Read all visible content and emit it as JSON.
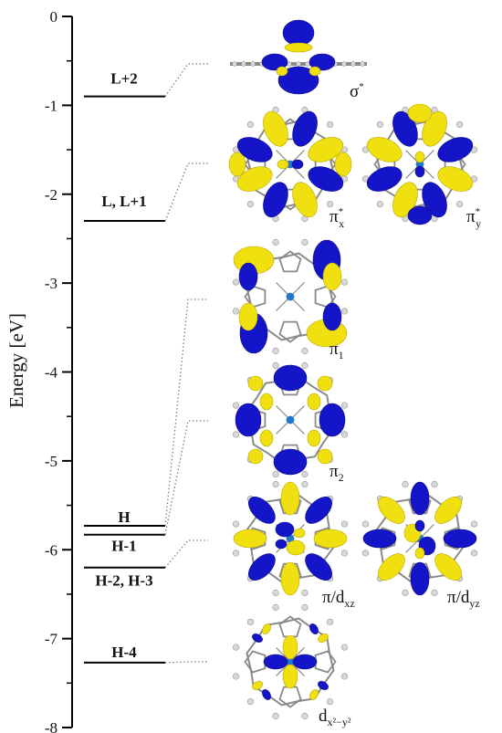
{
  "axis": {
    "title": "Energy [eV]",
    "ticks": [
      "0",
      "-1",
      "-2",
      "-3",
      "-4",
      "-5",
      "-6",
      "-7",
      "-8"
    ]
  },
  "levels": [
    {
      "id": "L+2",
      "label": "L+2",
      "energy": -0.9
    },
    {
      "id": "L,L+1",
      "label": "L, L+1",
      "energy": -2.3
    },
    {
      "id": "H",
      "label": "H",
      "energy": -5.73
    },
    {
      "id": "H-1",
      "label": "H-1",
      "energy": -5.83
    },
    {
      "id": "H-2,H-3",
      "label": "H-2, H-3",
      "energy": -6.2
    },
    {
      "id": "H-4",
      "label": "H-4",
      "energy": -7.27
    }
  ],
  "orbitals": [
    {
      "id": "sigma",
      "main": "σ",
      "sup": "*",
      "sub": ""
    },
    {
      "id": "pix",
      "main": "π",
      "sup": "*",
      "sub": "x"
    },
    {
      "id": "piy",
      "main": "π",
      "sup": "*",
      "sub": "y"
    },
    {
      "id": "pi1",
      "main": "π",
      "sup": "",
      "sub": "1"
    },
    {
      "id": "pi2",
      "main": "π",
      "sup": "",
      "sub": "2"
    },
    {
      "id": "pidxz",
      "main": "π/d",
      "sup": "",
      "sub": "xz"
    },
    {
      "id": "pidyz",
      "main": "π/d",
      "sup": "",
      "sub": "yz"
    },
    {
      "id": "dx2y2",
      "main": "d",
      "sup": "",
      "sub": "x²−y²"
    }
  ],
  "colors": {
    "lobe_positive": "#1414c8",
    "lobe_negative": "#f0e010",
    "frame": "#8a8a8a",
    "atom": "#d8d8d8",
    "metal": "#2277cc"
  }
}
